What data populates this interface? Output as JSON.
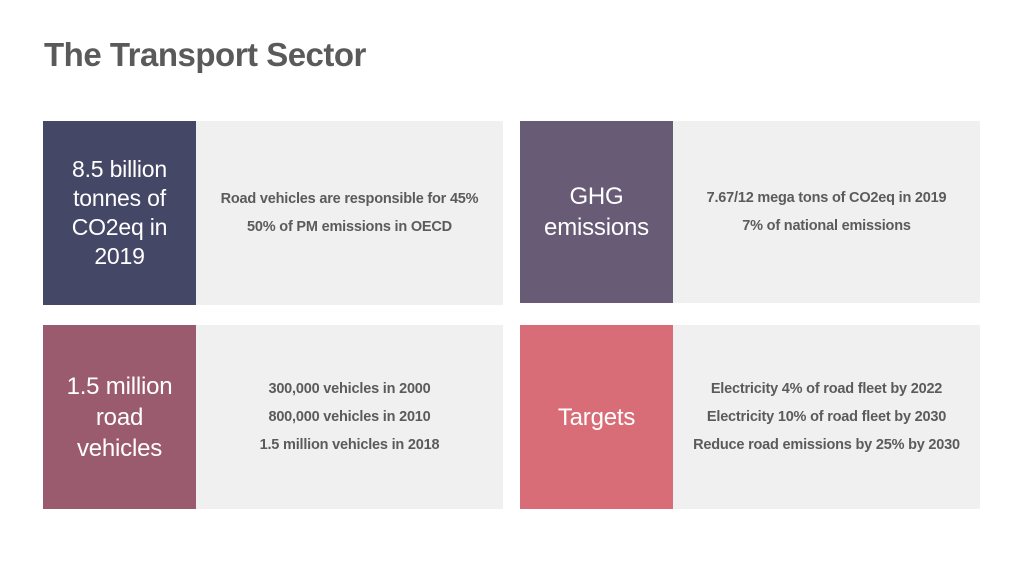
{
  "page": {
    "title": "The Transport Sector"
  },
  "colors": {
    "card_tl": "#454766",
    "card_tr": "#675b76",
    "card_bl": "#9b5b6e",
    "card_br": "#d86d77",
    "detail_bg": "#f0f0f0",
    "title": "#5a5a5a"
  },
  "cards": [
    {
      "label": "8.5 billion tonnes of CO2eq in 2019",
      "details": [
        "Road vehicles are responsible for 45%",
        "50% of PM emissions in OECD"
      ]
    },
    {
      "label": "GHG emissions",
      "details": [
        "7.67/12 mega tons of CO2eq in 2019",
        "7% of national emissions"
      ]
    },
    {
      "label": "1.5 million road vehicles",
      "details": [
        "300,000 vehicles in 2000",
        "800,000 vehicles in 2010",
        "1.5 million vehicles in 2018"
      ]
    },
    {
      "label": "Targets",
      "details": [
        "Electricity 4% of road fleet by 2022",
        "Electricity 10% of road fleet by 2030",
        "Reduce road emissions by 25% by 2030"
      ]
    }
  ]
}
